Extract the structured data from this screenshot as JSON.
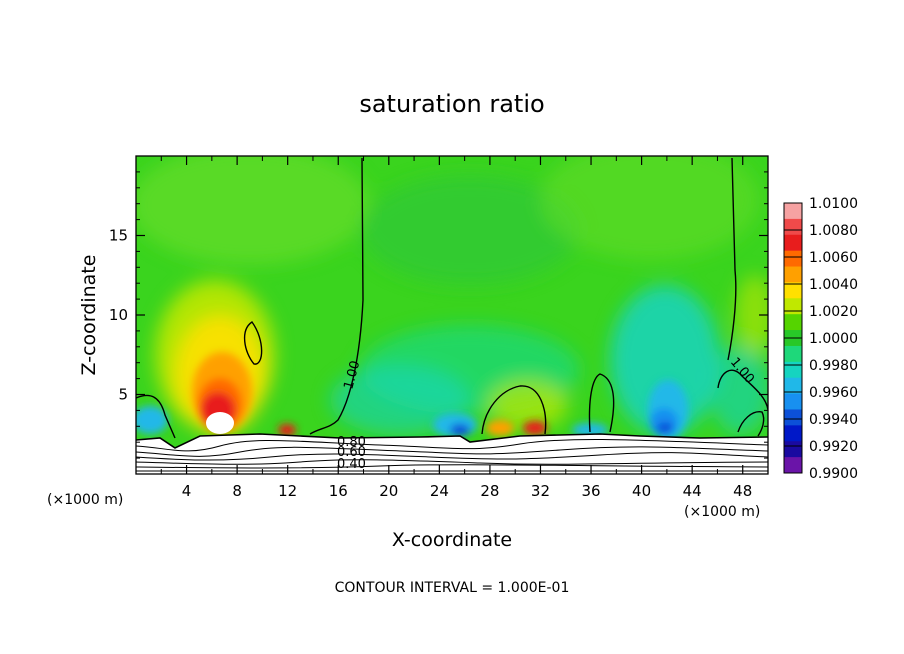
{
  "chart_data": {
    "type": "heatmap",
    "title": "saturation ratio",
    "xlabel": "X-coordinate",
    "ylabel": "Z-coordinate",
    "x_unit_left": "(×1000 m)",
    "x_unit_right": "(×1000 m)",
    "xlim": [
      0,
      50
    ],
    "ylim": [
      0,
      20
    ],
    "x_ticks": [
      4,
      8,
      12,
      16,
      20,
      24,
      28,
      32,
      36,
      40,
      44,
      48
    ],
    "y_ticks": [
      5,
      10,
      15
    ],
    "footer": "CONTOUR INTERVAL = 1.000E-01",
    "colorbar": {
      "levels": [
        "1.0100",
        "1.0080",
        "1.0060",
        "1.0040",
        "1.0020",
        "1.0000",
        "0.9980",
        "0.9960",
        "0.9940",
        "0.9920",
        "0.9900"
      ],
      "colors": [
        "#f6a2a2",
        "#f04a4a",
        "#e81d1d",
        "#ff6a00",
        "#ffa000",
        "#ffe000",
        "#c0e800",
        "#55d400",
        "#28c828",
        "#1ed87a",
        "#15d4c0",
        "#20b8e8",
        "#1890f0",
        "#0c50d8",
        "#0018c8",
        "#1a0aa0",
        "#6a14a8"
      ]
    },
    "contour_labels": [
      "1.00",
      "1.00",
      "0.80",
      "0.60",
      "0.40"
    ]
  }
}
